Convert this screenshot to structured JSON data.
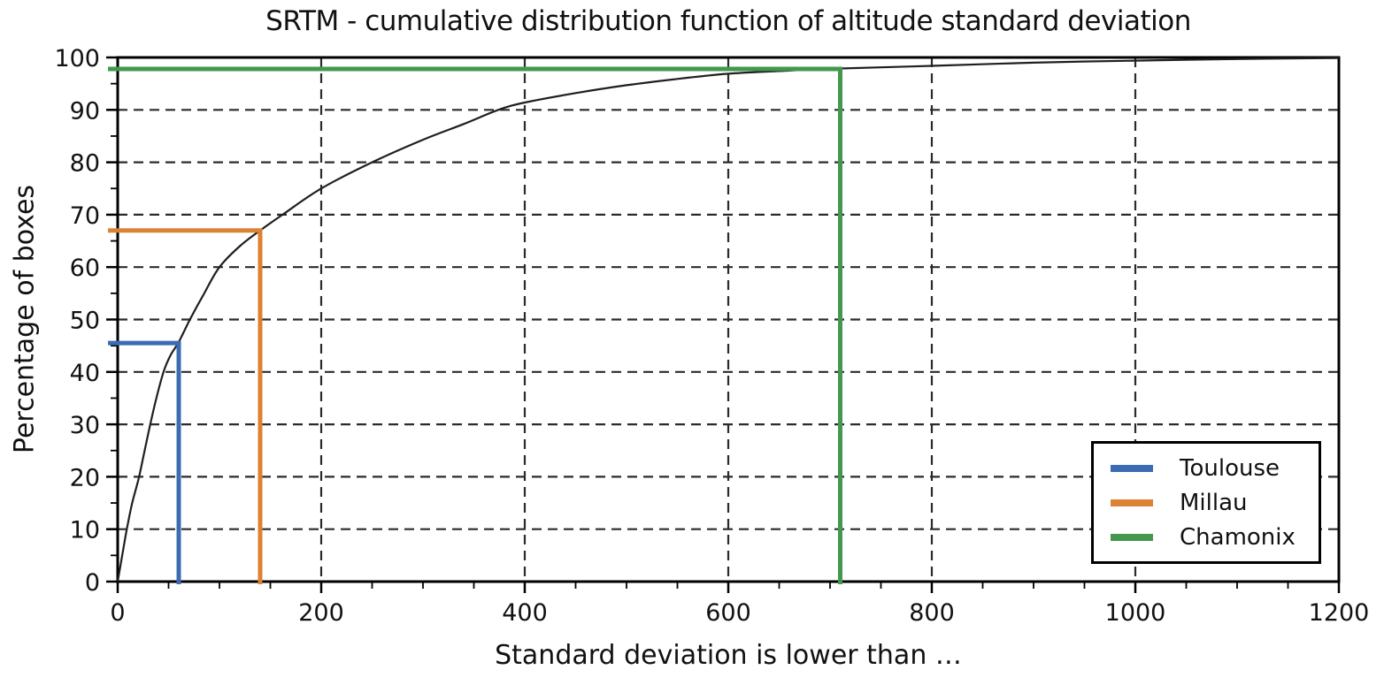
{
  "chart_data": {
    "type": "line",
    "title": "SRTM - cumulative distribution function of altitude standard deviation",
    "xlabel": "Standard deviation is lower than …",
    "ylabel": "Percentage of boxes",
    "xlim": [
      0,
      1200
    ],
    "ylim": [
      0,
      100
    ],
    "x_ticks": [
      0,
      200,
      400,
      600,
      800,
      1000,
      1200
    ],
    "y_ticks": [
      0,
      10,
      20,
      30,
      40,
      50,
      60,
      70,
      80,
      90,
      100
    ],
    "x_minor_tick_step": 50,
    "y_minor_tick_step": 5,
    "grid": {
      "show": true,
      "style": "dashed",
      "color": "#2b2b2b"
    },
    "frame_color": "#000000",
    "background": "#ffffff",
    "legend": {
      "position": "lower-right"
    },
    "curve": {
      "name": "cumulative distribution of altitude standard deviation",
      "color": "#1f1f1f",
      "points": [
        [
          0,
          0
        ],
        [
          4,
          4.5
        ],
        [
          9,
          10
        ],
        [
          14,
          14.8
        ],
        [
          21,
          20
        ],
        [
          27,
          25.5
        ],
        [
          32,
          30
        ],
        [
          38,
          35
        ],
        [
          45,
          40
        ],
        [
          52,
          43.2
        ],
        [
          60,
          45.7
        ],
        [
          71,
          50
        ],
        [
          85,
          55
        ],
        [
          100,
          60
        ],
        [
          120,
          64
        ],
        [
          140,
          67
        ],
        [
          162,
          70
        ],
        [
          200,
          75
        ],
        [
          250,
          80
        ],
        [
          300,
          84.3
        ],
        [
          340,
          87.3
        ],
        [
          374,
          90
        ],
        [
          400,
          91.4
        ],
        [
          450,
          93.2
        ],
        [
          500,
          94.7
        ],
        [
          550,
          95.9
        ],
        [
          600,
          96.9
        ],
        [
          650,
          97.4
        ],
        [
          710,
          97.9
        ],
        [
          800,
          98.4
        ],
        [
          900,
          99.0
        ],
        [
          1000,
          99.4
        ],
        [
          1100,
          99.7
        ],
        [
          1200,
          99.9
        ]
      ]
    },
    "markers": [
      {
        "name": "Toulouse",
        "color": "#3b6cb3",
        "std_dev": 60,
        "percentage": 45.5
      },
      {
        "name": "Millau",
        "color": "#dc8233",
        "std_dev": 140,
        "percentage": 67
      },
      {
        "name": "Chamonix",
        "color": "#43984e",
        "std_dev": 710,
        "percentage": 97.8
      }
    ]
  }
}
